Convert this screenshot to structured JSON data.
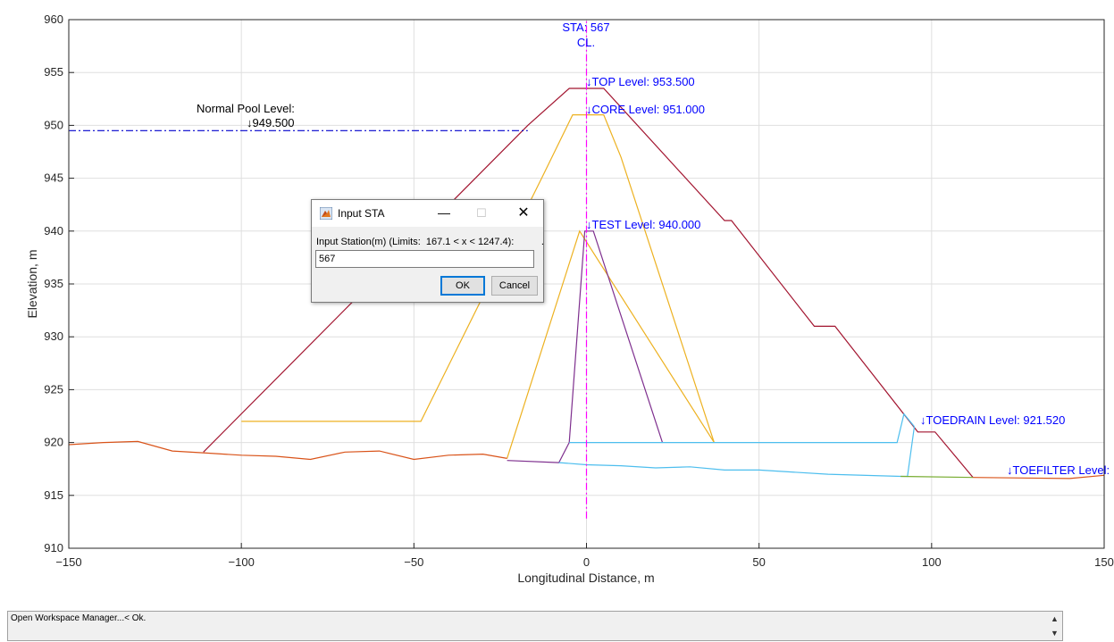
{
  "chart_data": {
    "type": "line",
    "xlabel": "Longitudinal Distance, m",
    "ylabel": "Elevation, m",
    "xlim": [
      -150,
      150
    ],
    "ylim": [
      910,
      960
    ],
    "xticks": [
      -150,
      -100,
      -50,
      0,
      50,
      100,
      150
    ],
    "yticks": [
      910,
      915,
      920,
      925,
      930,
      935,
      940,
      945,
      950,
      955,
      960
    ],
    "grid": true,
    "series": [
      {
        "color": "#a2142f",
        "x": [
          -111,
          -17,
          -5,
          5,
          40,
          42,
          66,
          72,
          96,
          101,
          112
        ],
        "y": [
          919.1,
          950,
          953.5,
          953.5,
          941,
          941,
          931,
          931,
          921,
          921,
          916.7
        ]
      },
      {
        "color": "#edb120",
        "x": [
          -100,
          -48,
          -13,
          -4,
          5,
          10,
          37
        ],
        "y": [
          922,
          922,
          945,
          951,
          951,
          947,
          920
        ]
      },
      {
        "color": "#edb120",
        "x": [
          -100,
          -100
        ],
        "y": [
          922,
          922
        ]
      },
      {
        "color": "#edb120",
        "x": [
          -23,
          -2,
          37
        ],
        "y": [
          918.5,
          940,
          920
        ]
      },
      {
        "color": "#7e2f8e",
        "x": [
          -23,
          -8,
          -5,
          -0.5,
          2,
          22
        ],
        "y": [
          918.3,
          918.1,
          920,
          940,
          940,
          920
        ]
      },
      {
        "color": "#4dbeee",
        "x": [
          -5,
          90,
          92,
          95
        ],
        "y": [
          920,
          920,
          922.7,
          921.5
        ]
      },
      {
        "color": "#4dbeee",
        "x": [
          -8,
          0,
          10,
          20,
          30,
          40,
          50,
          70,
          91,
          93,
          95
        ],
        "y": [
          918.1,
          917.9,
          917.8,
          917.6,
          917.7,
          917.4,
          917.4,
          917,
          916.8,
          916.8,
          921.5
        ]
      },
      {
        "color": "#77ac30",
        "x": [
          91,
          112
        ],
        "y": [
          916.8,
          916.7
        ]
      },
      {
        "color": "#d95319",
        "x": [
          -150,
          -140,
          -130,
          -120,
          -110,
          -100,
          -90,
          -80,
          -70,
          -60,
          -50,
          -40,
          -30,
          -23
        ],
        "y": [
          919.8,
          920,
          920.1,
          919.2,
          919,
          918.8,
          918.7,
          918.4,
          919.1,
          919.2,
          918.4,
          918.8,
          918.9,
          918.5
        ]
      },
      {
        "color": "#d95319",
        "x": [
          112,
          140,
          150
        ],
        "y": [
          916.7,
          916.6,
          916.9
        ]
      },
      {
        "color": "#0000cd",
        "style": "dashdot",
        "x": [
          -150,
          -17
        ],
        "y": [
          949.5,
          949.5
        ]
      },
      {
        "color": "#ff00ff",
        "style": "dashdot",
        "x": [
          0,
          0
        ],
        "y": [
          912.8,
          960
        ]
      }
    ],
    "annotations": [
      {
        "text": "STA: 567",
        "color": "blue"
      },
      {
        "text": "CL.",
        "color": "blue"
      },
      {
        "text": "↓TOP Level: 953.500",
        "color": "blue"
      },
      {
        "text": "↓CORE Level: 951.000",
        "color": "blue"
      },
      {
        "text": "↓TEST Level: 940.000",
        "color": "blue"
      },
      {
        "text": "↓TOEDRAIN Level: 921.520",
        "color": "blue"
      },
      {
        "text": "↓TOEFILTER Level:",
        "color": "blue"
      },
      {
        "text": "Normal Pool Level:",
        "color": "black"
      },
      {
        "text": "↓949.500",
        "color": "black"
      }
    ]
  },
  "dialog": {
    "title": "Input STA",
    "prompt": "Input Station(m) (Limits:  167.1 < x < 1247.4):          .",
    "value": "567",
    "ok_label": "OK",
    "cancel_label": "Cancel",
    "min_glyph": "—",
    "max_glyph": "☐",
    "close_glyph": "✕"
  },
  "status": {
    "text": "Open Workspace Manager...< Ok."
  }
}
